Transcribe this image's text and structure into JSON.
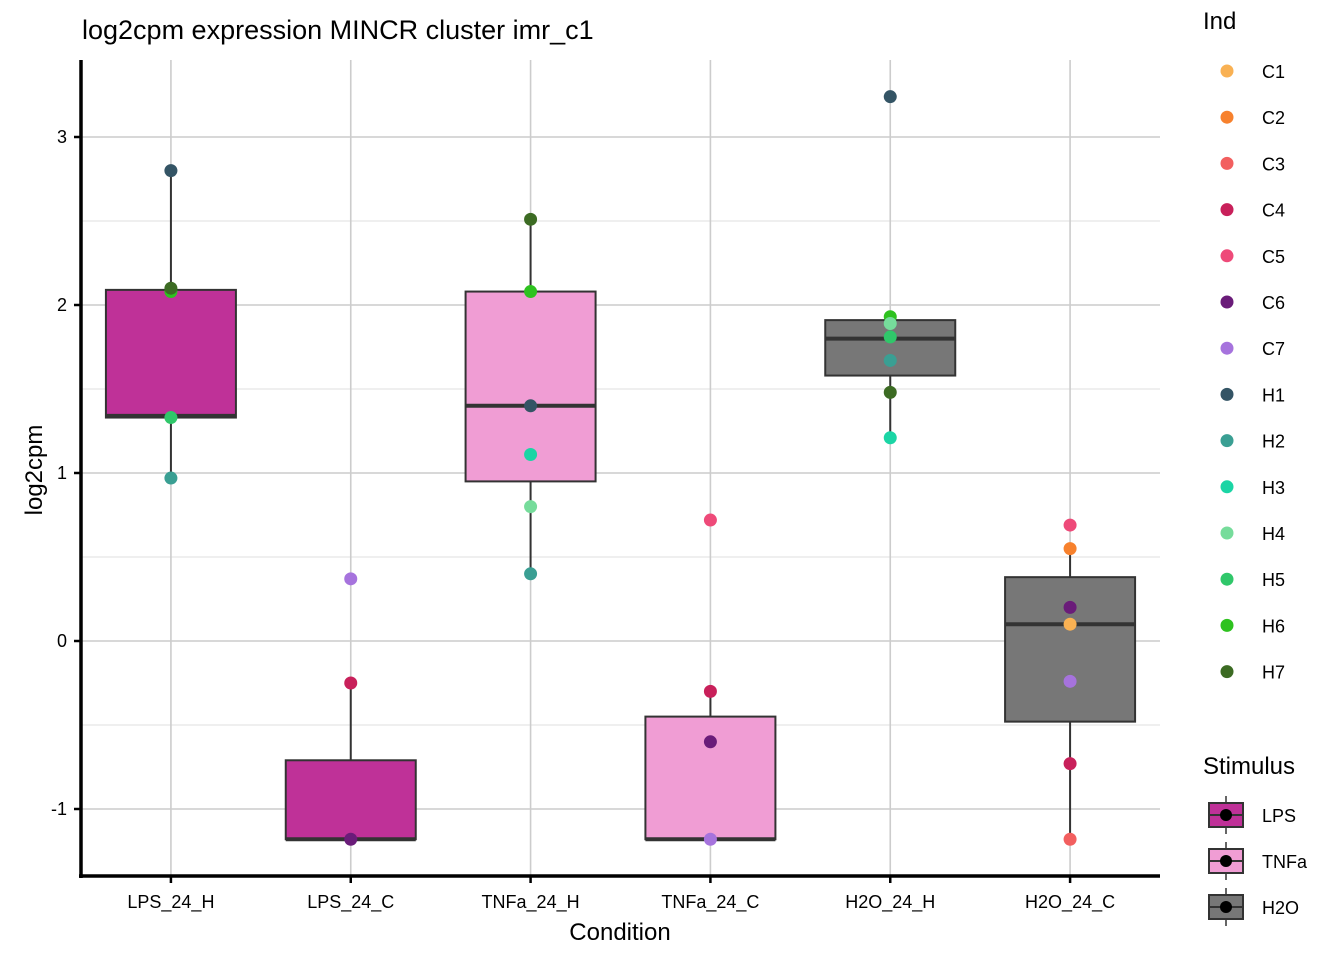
{
  "chart_data": {
    "type": "boxplot",
    "title": "log2cpm expression MINCR cluster imr_c1",
    "xlabel": "Condition",
    "ylabel": "log2cpm",
    "ylim": [
      -1.4,
      3.45
    ],
    "yticks": [
      -1,
      0,
      1,
      2,
      3
    ],
    "ytick_labels": [
      "-1",
      "0",
      "1",
      "2",
      "3"
    ],
    "grid": true,
    "categories": [
      "LPS_24_H",
      "LPS_24_C",
      "TNFa_24_H",
      "TNFa_24_C",
      "H2O_24_H",
      "H2O_24_C"
    ],
    "boxes": [
      {
        "category": "LPS_24_H",
        "stimulus": "LPS",
        "lower_whisker": 0.97,
        "q1": 1.33,
        "median": 1.34,
        "q3": 2.09,
        "upper_whisker": 2.8
      },
      {
        "category": "LPS_24_C",
        "stimulus": "LPS",
        "lower_whisker": -1.18,
        "q1": -1.18,
        "median": -1.18,
        "q3": -0.71,
        "upper_whisker": -0.25
      },
      {
        "category": "TNFa_24_H",
        "stimulus": "TNFa",
        "lower_whisker": 0.4,
        "q1": 0.95,
        "median": 1.4,
        "q3": 2.08,
        "upper_whisker": 2.51
      },
      {
        "category": "TNFa_24_C",
        "stimulus": "TNFa",
        "lower_whisker": -1.18,
        "q1": -1.18,
        "median": -1.18,
        "q3": -0.45,
        "upper_whisker": -0.3
      },
      {
        "category": "H2O_24_H",
        "stimulus": "H2O",
        "lower_whisker": 1.21,
        "q1": 1.58,
        "median": 1.8,
        "q3": 1.91,
        "upper_whisker": 1.93
      },
      {
        "category": "H2O_24_C",
        "stimulus": "H2O",
        "lower_whisker": -1.18,
        "q1": -0.48,
        "median": 0.1,
        "q3": 0.38,
        "upper_whisker": 0.55
      }
    ],
    "points": [
      {
        "category": "LPS_24_H",
        "ind": "H1",
        "y": 2.8
      },
      {
        "category": "LPS_24_H",
        "ind": "H6",
        "y": 2.08
      },
      {
        "category": "LPS_24_H",
        "ind": "H7",
        "y": 2.1
      },
      {
        "category": "LPS_24_H",
        "ind": "H5",
        "y": 1.33
      },
      {
        "category": "LPS_24_H",
        "ind": "H2",
        "y": 0.97
      },
      {
        "category": "LPS_24_C",
        "ind": "C7",
        "y": 0.37
      },
      {
        "category": "LPS_24_C",
        "ind": "C4",
        "y": -0.25
      },
      {
        "category": "LPS_24_C",
        "ind": "C6",
        "y": -1.18
      },
      {
        "category": "TNFa_24_H",
        "ind": "H7",
        "y": 2.51
      },
      {
        "category": "TNFa_24_H",
        "ind": "H6",
        "y": 2.08
      },
      {
        "category": "TNFa_24_H",
        "ind": "H1",
        "y": 1.4
      },
      {
        "category": "TNFa_24_H",
        "ind": "H3",
        "y": 1.11
      },
      {
        "category": "TNFa_24_H",
        "ind": "H4",
        "y": 0.8
      },
      {
        "category": "TNFa_24_H",
        "ind": "H2",
        "y": 0.4
      },
      {
        "category": "TNFa_24_C",
        "ind": "C5",
        "y": 0.72
      },
      {
        "category": "TNFa_24_C",
        "ind": "C4",
        "y": -0.3
      },
      {
        "category": "TNFa_24_C",
        "ind": "C6",
        "y": -0.6
      },
      {
        "category": "TNFa_24_C",
        "ind": "C7",
        "y": -1.18
      },
      {
        "category": "H2O_24_H",
        "ind": "H1",
        "y": 3.24
      },
      {
        "category": "H2O_24_H",
        "ind": "H6",
        "y": 1.93
      },
      {
        "category": "H2O_24_H",
        "ind": "H4",
        "y": 1.89
      },
      {
        "category": "H2O_24_H",
        "ind": "H5",
        "y": 1.81
      },
      {
        "category": "H2O_24_H",
        "ind": "H2",
        "y": 1.67
      },
      {
        "category": "H2O_24_H",
        "ind": "H7",
        "y": 1.48
      },
      {
        "category": "H2O_24_H",
        "ind": "H3",
        "y": 1.21
      },
      {
        "category": "H2O_24_C",
        "ind": "C5",
        "y": 0.69
      },
      {
        "category": "H2O_24_C",
        "ind": "C2",
        "y": 0.55
      },
      {
        "category": "H2O_24_C",
        "ind": "C6",
        "y": 0.2
      },
      {
        "category": "H2O_24_C",
        "ind": "C1",
        "y": 0.1
      },
      {
        "category": "H2O_24_C",
        "ind": "C7",
        "y": -0.24
      },
      {
        "category": "H2O_24_C",
        "ind": "C4",
        "y": -0.73
      },
      {
        "category": "H2O_24_C",
        "ind": "C3",
        "y": -1.18
      }
    ],
    "legend_ind": {
      "title": "Ind",
      "position": "right",
      "entries": [
        {
          "label": "C1",
          "color": "#F9B153"
        },
        {
          "label": "C2",
          "color": "#F7812D"
        },
        {
          "label": "C3",
          "color": "#F25F5F"
        },
        {
          "label": "C4",
          "color": "#C8205A"
        },
        {
          "label": "C5",
          "color": "#EE4A79"
        },
        {
          "label": "C6",
          "color": "#6A1C79"
        },
        {
          "label": "C7",
          "color": "#A673DD"
        },
        {
          "label": "H1",
          "color": "#345465"
        },
        {
          "label": "H2",
          "color": "#3A9F93"
        },
        {
          "label": "H3",
          "color": "#1BD5A5"
        },
        {
          "label": "H4",
          "color": "#76DC9B"
        },
        {
          "label": "H5",
          "color": "#30C76A"
        },
        {
          "label": "H6",
          "color": "#2EC21F"
        },
        {
          "label": "H7",
          "color": "#3C6B23"
        }
      ]
    },
    "legend_stimulus": {
      "title": "Stimulus",
      "position": "right",
      "entries": [
        {
          "label": "LPS",
          "color": "#BF3198"
        },
        {
          "label": "TNFa",
          "color": "#F09DD4"
        },
        {
          "label": "H2O",
          "color": "#777777"
        }
      ]
    }
  }
}
